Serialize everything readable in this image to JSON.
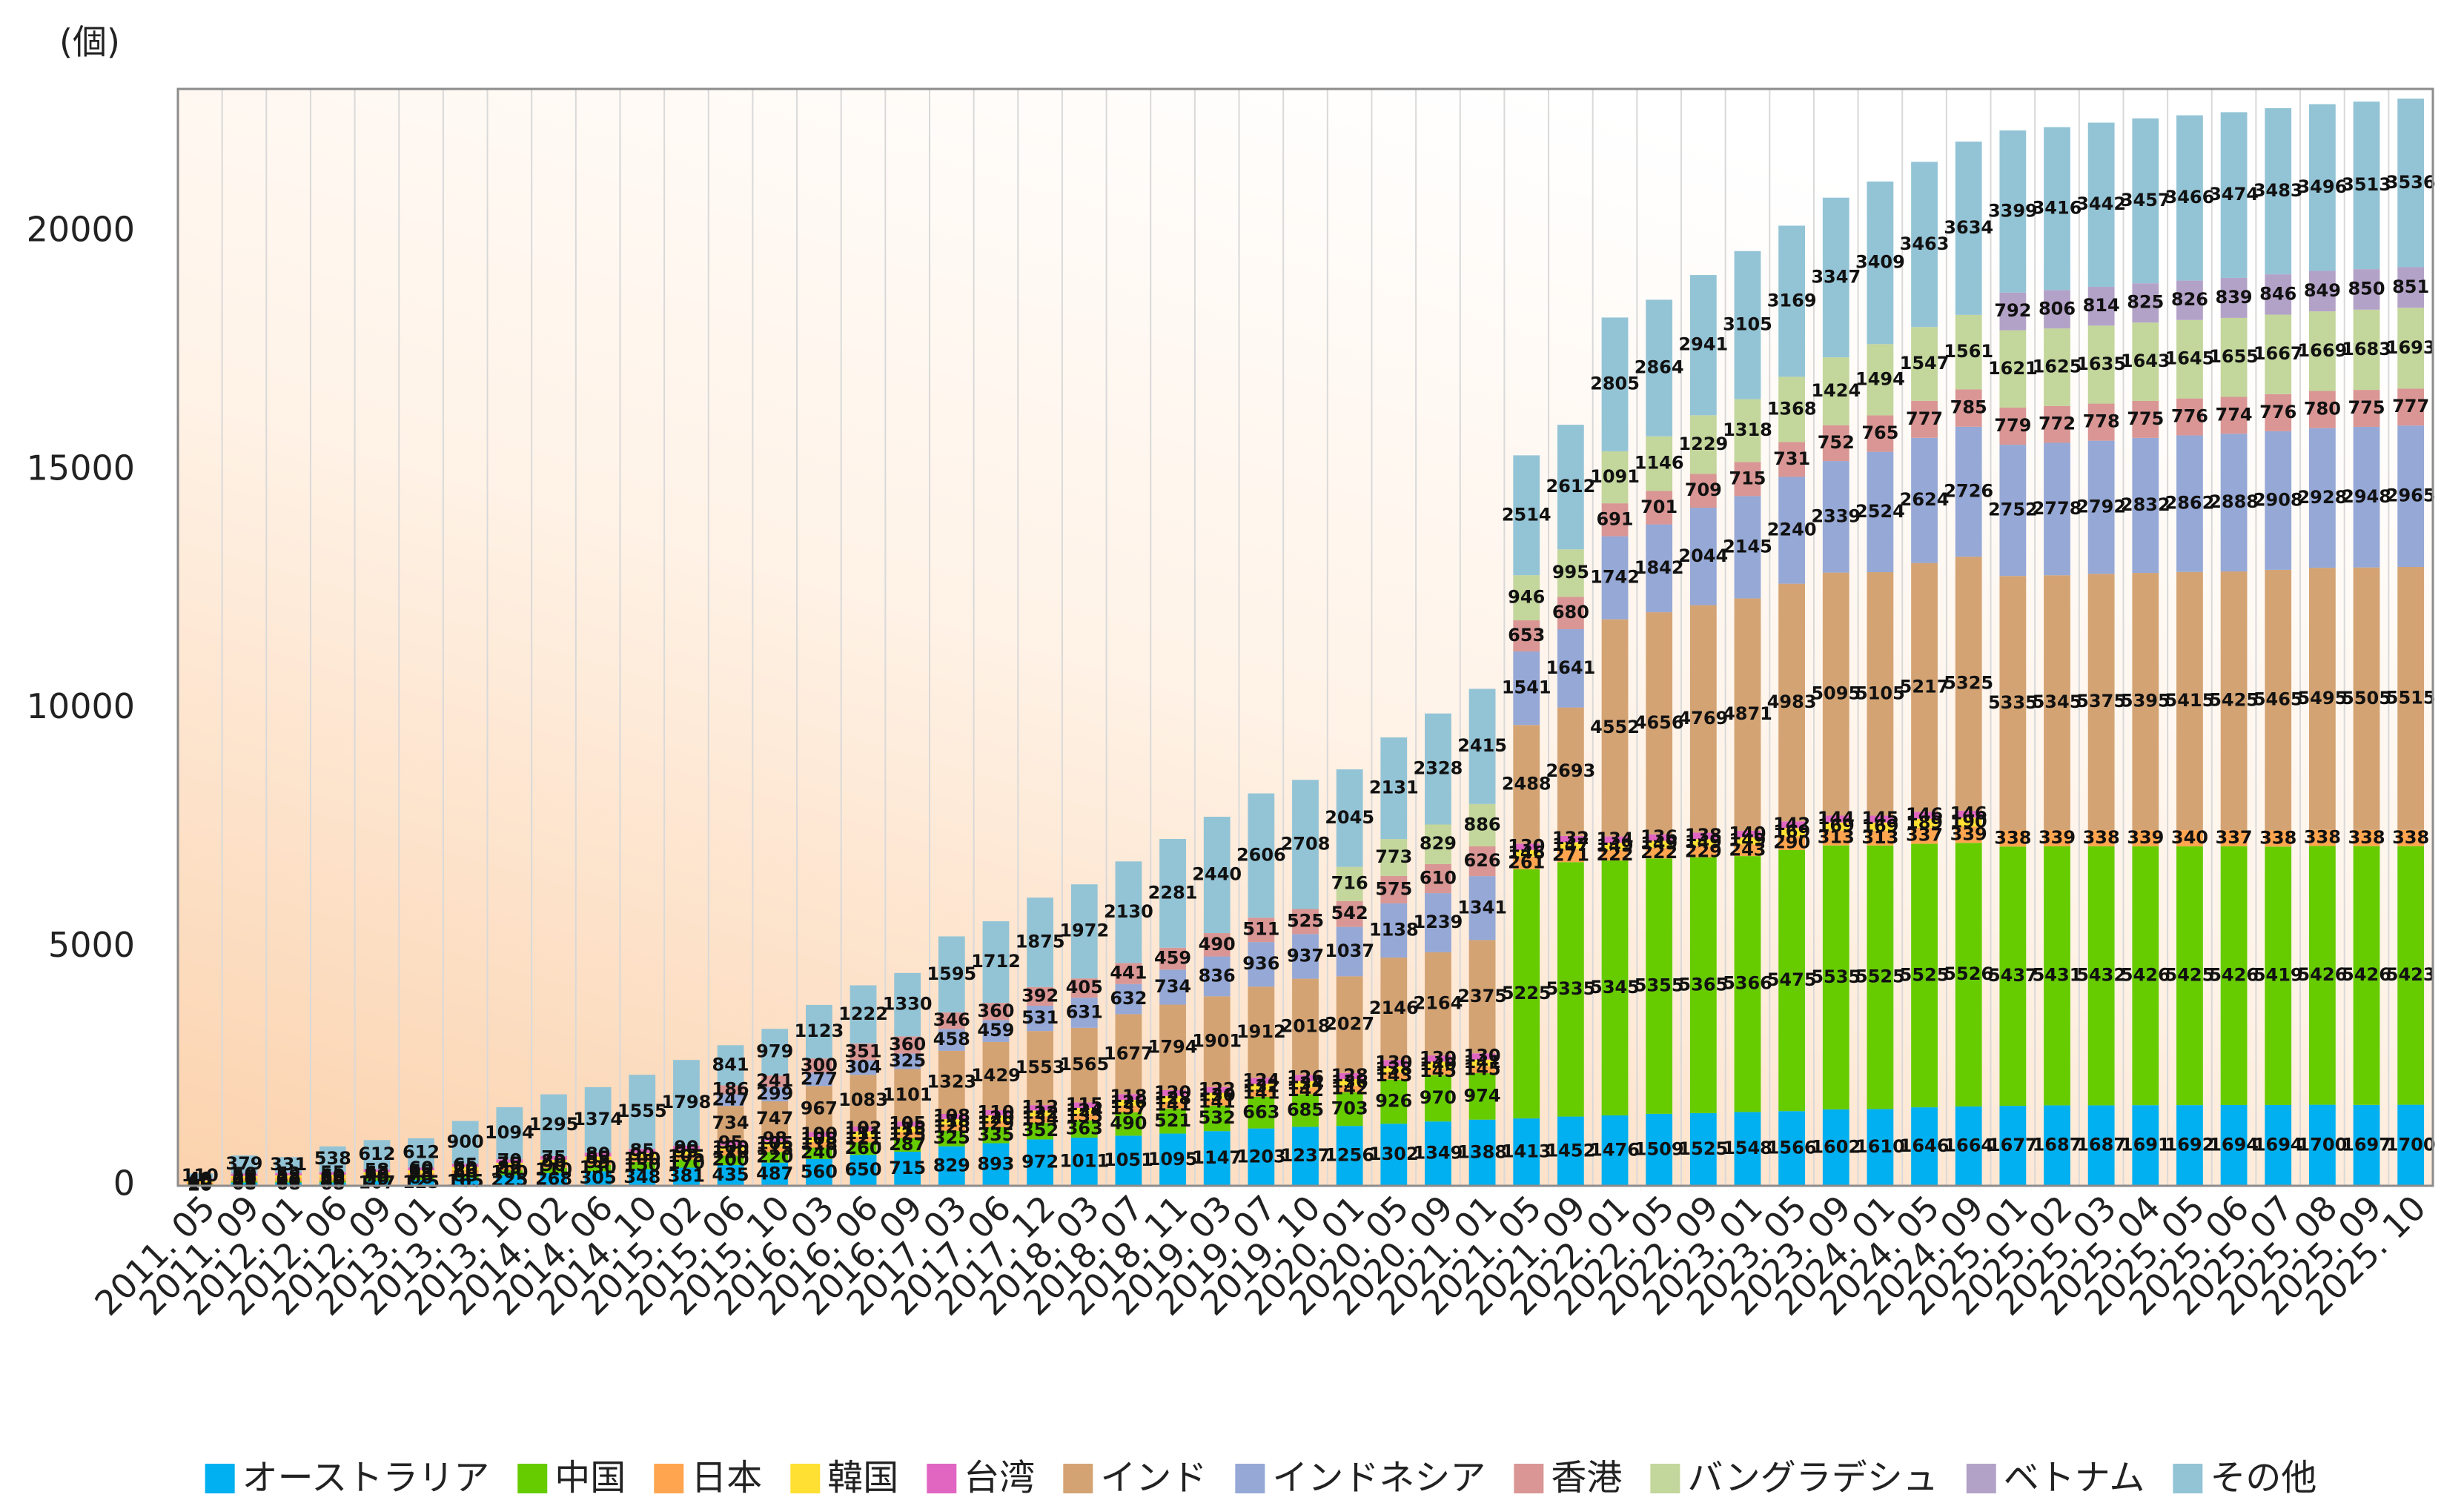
{
  "chart_data": {
    "type": "stacked_bar",
    "y_unit": "(個)",
    "categories": [
      "2011. 05",
      "2011. 09",
      "2012. 01",
      "2012. 06",
      "2012. 09",
      "2013. 01",
      "2013. 05",
      "2013. 10",
      "2014. 02",
      "2014. 06",
      "2014. 10",
      "2015. 02",
      "2015. 06",
      "2015. 10",
      "2016. 03",
      "2016. 06",
      "2016. 09",
      "2017. 03",
      "2017. 06",
      "2017. 12",
      "2018. 03",
      "2018. 07",
      "2018. 11",
      "2019. 03",
      "2019. 07",
      "2019. 10",
      "2020. 01",
      "2020. 05",
      "2020. 09",
      "2021. 01",
      "2021. 05",
      "2021. 09",
      "2022. 01",
      "2022. 05",
      "2022. 09",
      "2023. 01",
      "2023. 05",
      "2023. 09",
      "2024. 01",
      "2024. 05",
      "2024. 09",
      "2025. 01",
      "2025. 02",
      "2025. 03",
      "2025. 04",
      "2025. 05",
      "2025. 06",
      "2025. 07",
      "2025. 08",
      "2025. 09",
      "2025. 10"
    ],
    "ylim": [
      0,
      23000
    ],
    "yticks": [
      0,
      5000,
      10000,
      15000,
      20000
    ],
    "legend": "bottom",
    "series": [
      {
        "name": "オーストラリア",
        "color": "#00b0f0",
        "values": [
          20,
          68,
          68,
          68,
          107,
          125,
          165,
          225,
          268,
          305,
          348,
          381,
          435,
          487,
          560,
          650,
          715,
          829,
          893,
          972,
          1011,
          1051,
          1095,
          1147,
          1203,
          1237,
          1256,
          1302,
          1349,
          1388,
          1413,
          1452,
          1476,
          1509,
          1525,
          1548,
          1566,
          1602,
          1610,
          1646,
          1664,
          1677,
          1687,
          1687,
          1691,
          1692,
          1694,
          1694,
          1700,
          1697,
          1700
        ]
      },
      {
        "name": "中国",
        "color": "#66cc00",
        "values": [
          10,
          25,
          30,
          40,
          50,
          60,
          80,
          100,
          110,
          130,
          150,
          170,
          200,
          220,
          240,
          260,
          287,
          325,
          335,
          352,
          363,
          490,
          521,
          532,
          663,
          685,
          703,
          926,
          970,
          974,
          5225,
          5335,
          5345,
          5355,
          5365,
          5366,
          5475,
          5535,
          5525,
          5525,
          5526,
          5437,
          5431,
          5432,
          5426,
          5425,
          5426,
          5419,
          5426,
          5426,
          5423
        ]
      },
      {
        "name": "日本",
        "color": "#ffa54f",
        "values": [
          40,
          60,
          62,
          65,
          70,
          75,
          80,
          85,
          90,
          95,
          100,
          105,
          110,
          115,
          118,
          121,
          125,
          128,
          129,
          134,
          135,
          137,
          141,
          141,
          141,
          142,
          142,
          143,
          145,
          145,
          261,
          271,
          222,
          222,
          229,
          243,
          290,
          313,
          313,
          337,
          339,
          338,
          339,
          338,
          339,
          340,
          337,
          338,
          338,
          338,
          338
        ]
      },
      {
        "name": "韓国",
        "color": "#ffe033",
        "values": [
          40,
          55,
          58,
          60,
          62,
          65,
          70,
          75,
          80,
          85,
          90,
          95,
          100,
          105,
          108,
          111,
          115,
          118,
          120,
          122,
          124,
          126,
          128,
          130,
          132,
          134,
          136,
          138,
          140,
          141,
          146,
          147,
          149,
          149,
          149,
          149,
          169,
          169,
          169,
          189,
          190,
          null,
          null,
          null,
          null,
          null,
          null,
          null,
          null,
          null,
          null
        ]
      },
      {
        "name": "台湾",
        "color": "#e066c2",
        "values": [
          40,
          50,
          52,
          55,
          58,
          60,
          65,
          70,
          75,
          80,
          85,
          90,
          95,
          98,
          100,
          102,
          105,
          108,
          110,
          112,
          115,
          118,
          120,
          122,
          124,
          126,
          128,
          130,
          130,
          130,
          130,
          132,
          134,
          136,
          138,
          140,
          142,
          144,
          145,
          146,
          146,
          null,
          null,
          null,
          null,
          null,
          null,
          null,
          null,
          null,
          null
        ]
      },
      {
        "name": "インド",
        "color": "#d4a373",
        "values": [
          null,
          null,
          null,
          null,
          null,
          null,
          null,
          null,
          null,
          null,
          null,
          null,
          734,
          747,
          967,
          1083,
          1101,
          1323,
          1429,
          1553,
          1565,
          1677,
          1794,
          1901,
          1912,
          2018,
          2027,
          2146,
          2164,
          2375,
          2488,
          2693,
          4552,
          4656,
          4769,
          4871,
          4983,
          5095,
          5105,
          5217,
          5325,
          5335,
          5345,
          5375,
          5395,
          5415,
          5425,
          5465,
          5495,
          5505,
          5515
        ]
      },
      {
        "name": "インドネシア",
        "color": "#95a8d6",
        "values": [
          null,
          null,
          null,
          null,
          null,
          null,
          null,
          null,
          null,
          null,
          null,
          null,
          247,
          299,
          277,
          304,
          325,
          458,
          459,
          531,
          631,
          632,
          734,
          836,
          936,
          937,
          1037,
          1138,
          1239,
          1341,
          1541,
          1641,
          1742,
          1842,
          2044,
          2145,
          2240,
          2339,
          2524,
          2624,
          2726,
          2752,
          2778,
          2792,
          2832,
          2862,
          2888,
          2908,
          2928,
          2948,
          2965
        ]
      },
      {
        "name": "香港",
        "color": "#d99694",
        "values": [
          null,
          null,
          null,
          null,
          null,
          null,
          null,
          null,
          null,
          null,
          null,
          null,
          186,
          241,
          300,
          351,
          360,
          346,
          360,
          392,
          405,
          441,
          459,
          490,
          511,
          525,
          542,
          575,
          610,
          626,
          653,
          680,
          691,
          701,
          709,
          715,
          731,
          752,
          765,
          777,
          785,
          779,
          772,
          778,
          775,
          776,
          774,
          776,
          780,
          775,
          777
        ]
      },
      {
        "name": "バングラデシュ",
        "color": "#c3d69b",
        "values": [
          null,
          null,
          null,
          null,
          null,
          null,
          null,
          null,
          null,
          null,
          null,
          null,
          null,
          null,
          null,
          null,
          null,
          null,
          null,
          null,
          null,
          null,
          null,
          null,
          null,
          null,
          716,
          773,
          829,
          886,
          946,
          995,
          1091,
          1146,
          1229,
          1318,
          1368,
          1424,
          1494,
          1547,
          1561,
          1621,
          1625,
          1635,
          1643,
          1645,
          1655,
          1667,
          1669,
          1683,
          1693
        ]
      },
      {
        "name": "ベトナム",
        "color": "#b3a2c7",
        "values": [
          null,
          null,
          null,
          null,
          null,
          null,
          null,
          null,
          null,
          null,
          null,
          null,
          null,
          null,
          null,
          null,
          null,
          null,
          null,
          null,
          null,
          null,
          null,
          null,
          null,
          null,
          null,
          null,
          null,
          null,
          null,
          null,
          null,
          null,
          null,
          null,
          null,
          null,
          null,
          null,
          null,
          792,
          806,
          814,
          825,
          826,
          839,
          846,
          849,
          850,
          851
        ]
      },
      {
        "name": "その他",
        "color": "#93c4d6",
        "values": [
          110,
          379,
          331,
          538,
          612,
          612,
          900,
          1094,
          1295,
          1374,
          1555,
          1798,
          841,
          979,
          1123,
          1222,
          1330,
          1595,
          1712,
          1875,
          1972,
          2130,
          2281,
          2440,
          2606,
          2708,
          2045,
          2131,
          2328,
          2415,
          2514,
          2612,
          2805,
          2864,
          2941,
          3105,
          3169,
          3347,
          3409,
          3463,
          3634,
          3399,
          3416,
          3442,
          3457,
          3466,
          3474,
          3483,
          3496,
          3513,
          3536
        ]
      }
    ]
  }
}
